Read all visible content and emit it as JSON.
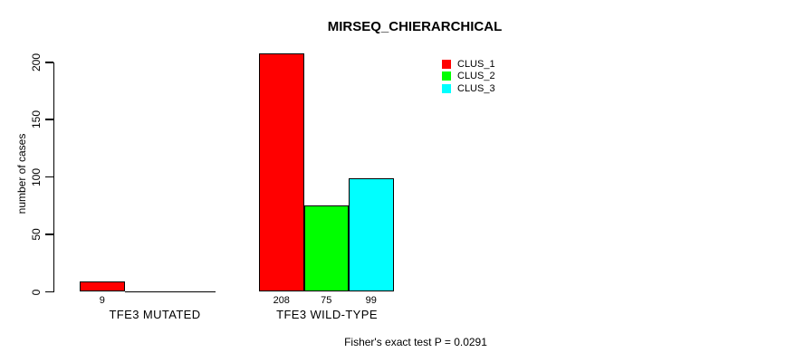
{
  "chart_data": {
    "type": "bar",
    "title": "MIRSEQ_CHIERARCHICAL",
    "ylabel": "number of cases",
    "xlabel": "",
    "categories": [
      "TFE3 MUTATED",
      "TFE3 WILD-TYPE"
    ],
    "series": [
      {
        "name": "CLUS_1",
        "color": "#ff0000",
        "values": [
          9,
          208
        ]
      },
      {
        "name": "CLUS_2",
        "color": "#00ff00",
        "values": [
          0,
          75
        ]
      },
      {
        "name": "CLUS_3",
        "color": "#00ffff",
        "values": [
          0,
          99
        ]
      }
    ],
    "bar_value_labels": [
      "9",
      "208",
      "75",
      "99"
    ],
    "show_zero_value_labels": false,
    "yticks": [
      0,
      50,
      100,
      150,
      200
    ],
    "ylim": [
      0,
      208
    ],
    "grid": false,
    "legend_position": "top-right",
    "axis_color": "#000000",
    "background": "#ffffff",
    "annotation": "Fisher's exact test P = 0.0291"
  }
}
